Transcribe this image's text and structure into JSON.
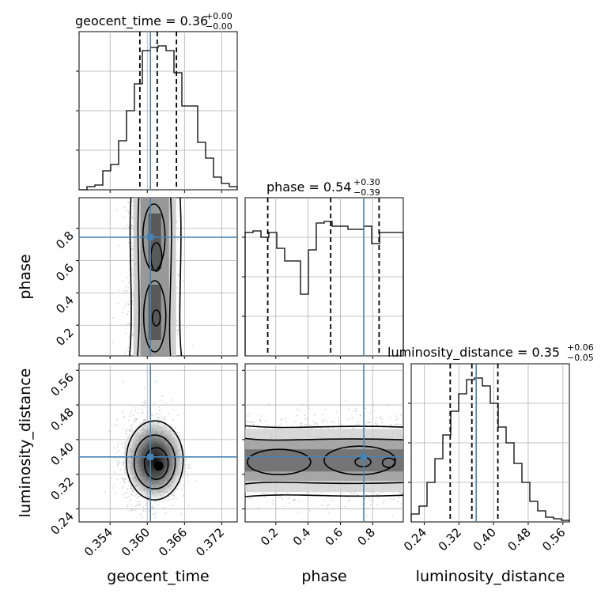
{
  "chart_data": {
    "type": "corner",
    "parameters": [
      "geocent_time",
      "phase",
      "luminosity_distance"
    ],
    "truth": {
      "geocent_time": 0.3605,
      "phase": 0.745,
      "luminosity_distance": 0.36
    },
    "titles": [
      {
        "param": "geocent_time",
        "base": "geocent_time = 0.36",
        "plus": "+0.00",
        "minus": "−0.00"
      },
      {
        "param": "phase",
        "base": "phase = 0.54",
        "plus": "+0.30",
        "minus": "−0.39"
      },
      {
        "param": "luminosity_distance",
        "base": "luminosity_distance = 0.35",
        "plus": "+0.06",
        "minus": "−0.05"
      }
    ],
    "axes": {
      "geocent_time": {
        "range": [
          0.349,
          0.3745
        ],
        "ticks": [
          "0.354",
          "0.360",
          "0.366",
          "0.372"
        ]
      },
      "phase": {
        "range": [
          0.01,
          0.99
        ],
        "ticks": [
          "0.2",
          "0.4",
          "0.6",
          "0.8"
        ]
      },
      "luminosity_distance": {
        "range": [
          0.21,
          0.575
        ],
        "ticks": [
          "0.24",
          "0.32",
          "0.40",
          "0.48",
          "0.56"
        ]
      }
    },
    "histograms": {
      "geocent_time": {
        "edges_range": [
          0.349,
          0.3745
        ],
        "counts": [
          0.0,
          0.02,
          0.03,
          0.12,
          0.16,
          0.31,
          0.5,
          0.67,
          0.88,
          0.9,
          0.91,
          0.88,
          0.74,
          0.53,
          0.53,
          0.3,
          0.2,
          0.08,
          0.04,
          0.02
        ],
        "quantiles": [
          0.3588,
          0.3616,
          0.3647
        ]
      },
      "phase": {
        "edges_range": [
          0.01,
          0.99
        ],
        "counts": [
          0.78,
          0.79,
          0.75,
          0.78,
          0.68,
          0.6,
          0.6,
          0.39,
          0.67,
          0.84,
          0.85,
          0.82,
          0.82,
          0.8,
          0.8,
          0.82,
          0.71,
          0.78,
          0.78,
          0.78
        ],
        "quantiles": [
          0.15,
          0.54,
          0.84
        ]
      },
      "luminosity_distance": {
        "edges_range": [
          0.21,
          0.575
        ],
        "counts": [
          0.05,
          0.1,
          0.25,
          0.4,
          0.55,
          0.7,
          0.81,
          0.9,
          0.91,
          0.86,
          0.75,
          0.6,
          0.5,
          0.37,
          0.25,
          0.13,
          0.07,
          0.03,
          0.02,
          0.01
        ],
        "quantiles": [
          0.3,
          0.35,
          0.41
        ]
      }
    },
    "grid": true,
    "scatter_color": "#b0b0b0",
    "contour_color": "#000000",
    "truth_color": "#4682b4"
  }
}
